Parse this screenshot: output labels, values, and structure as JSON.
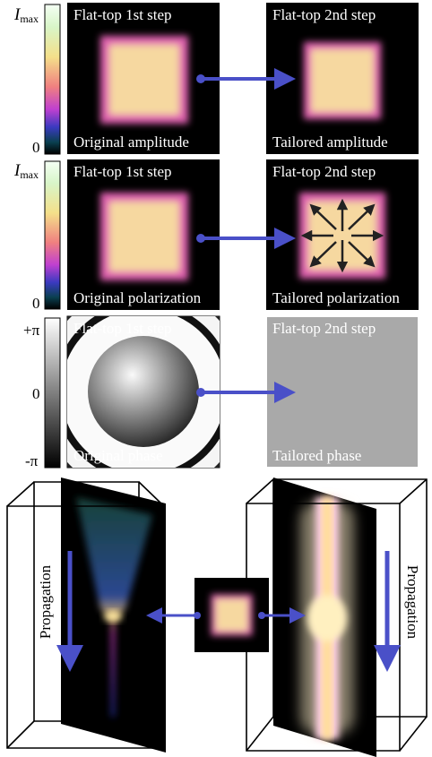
{
  "rows": [
    {
      "colorbar": {
        "top": "I",
        "top_sub": "max",
        "bottom": "0"
      },
      "left": {
        "title": "Flat-top 1st step",
        "caption": "Original amplitude"
      },
      "right": {
        "title": "Flat-top 2nd step",
        "caption": "Tailored amplitude"
      }
    },
    {
      "colorbar": {
        "top": "I",
        "top_sub": "max",
        "bottom": "0"
      },
      "left": {
        "title": "Flat-top 1st step",
        "caption": "Original polarization"
      },
      "right": {
        "title": "Flat-top 2nd step",
        "caption": "Tailored polarization"
      }
    },
    {
      "colorbar": {
        "top": "+π",
        "middle": "0",
        "bottom": "-π"
      },
      "left": {
        "title": "Flat-top 1st step",
        "caption": "Original phase"
      },
      "right": {
        "title": "Flat-top 2nd step",
        "caption": "Tailored phase"
      }
    }
  ],
  "propagation": {
    "left": "Propagation",
    "right": "Propagation"
  }
}
